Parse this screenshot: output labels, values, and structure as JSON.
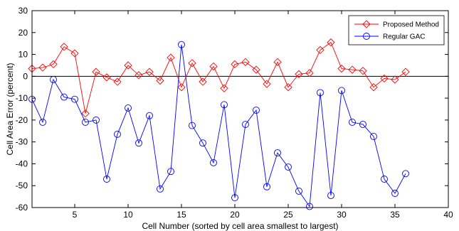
{
  "chart_data": {
    "type": "line",
    "xlabel": "Cell Number (sorted by cell area smallest to largest)",
    "ylabel": "Cell Area Error (percent)",
    "xlim": [
      1,
      40
    ],
    "ylim": [
      -60,
      30
    ],
    "xticks": [
      5,
      10,
      15,
      20,
      25,
      30,
      35,
      40
    ],
    "yticks": [
      -60,
      -50,
      -40,
      -30,
      -20,
      -10,
      0,
      10,
      20,
      30
    ],
    "zero_line": true,
    "grid": false,
    "legend_position": "top-right",
    "x": [
      1,
      2,
      3,
      4,
      5,
      6,
      7,
      8,
      9,
      10,
      11,
      12,
      13,
      14,
      15,
      16,
      17,
      18,
      19,
      20,
      21,
      22,
      23,
      24,
      25,
      26,
      27,
      28,
      29,
      30,
      31,
      32,
      33,
      34,
      35,
      36
    ],
    "series": [
      {
        "name": "Proposed Method",
        "color": "#ff0000",
        "marker": "diamond",
        "values": [
          3.5,
          4,
          5.5,
          13.5,
          10.5,
          -17,
          2,
          -0.5,
          -2.5,
          5,
          0.5,
          2,
          -2,
          8.5,
          -5,
          6,
          -2.5,
          4.5,
          -5.5,
          5.5,
          6.5,
          3,
          -3.5,
          6.5,
          -5,
          1,
          1.5,
          12,
          15.5,
          3.5,
          3,
          2.5,
          -5,
          -1,
          -1.5,
          2
        ]
      },
      {
        "name": "Regular GAC",
        "color": "#0000ff",
        "marker": "circle",
        "values": [
          -10.5,
          -21,
          -1.5,
          -9.5,
          -10.5,
          -21,
          -20,
          -47,
          -26.5,
          -14.5,
          -30.5,
          -18,
          -51.5,
          -43.5,
          14.5,
          -22.5,
          -30.5,
          -39.5,
          -13,
          -55.5,
          -22,
          -15.5,
          -50.5,
          -35,
          -41.5,
          -52.5,
          -59.5,
          -7.5,
          -54.5,
          -6.5,
          -21,
          -22,
          -27.5,
          -47,
          -53.5,
          -44.5
        ]
      }
    ]
  }
}
